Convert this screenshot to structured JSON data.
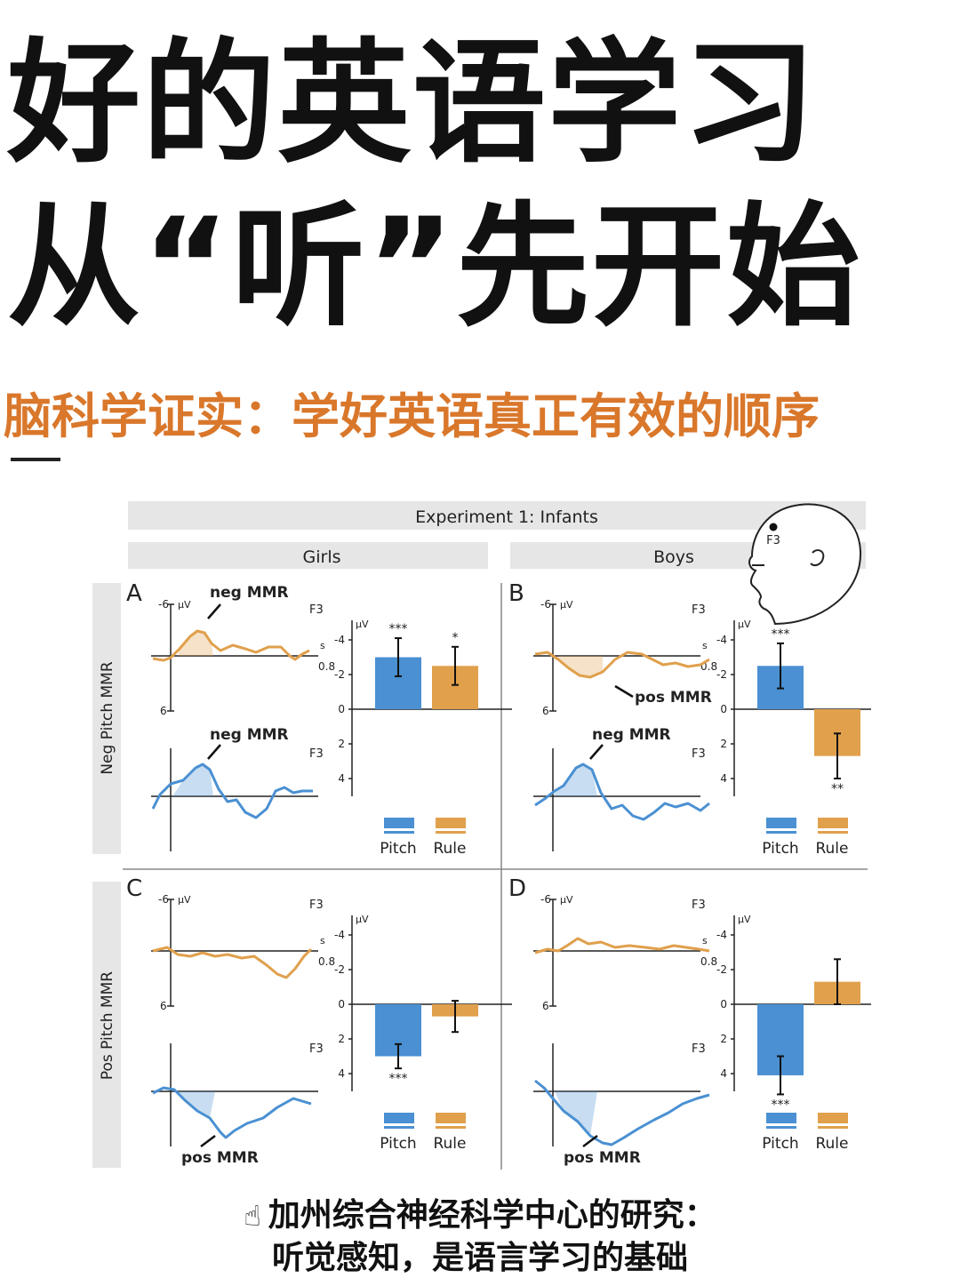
{
  "title_line1": "好的英语学习",
  "title_line2": "从“听”先开始",
  "subtitle": "脑科学证实：学好英语真正有效的顺序",
  "caption_icon": "pointing-hand-icon",
  "caption_line1": "加州综合神经科学中心的研究：",
  "caption_line2": "听觉感知，是语言学习的基础",
  "colors": {
    "pitch": "#4a90d2",
    "rule": "#e0a04c",
    "header_bg": "#e6e6e6",
    "accent": "#d9772b"
  },
  "chart_data": {
    "type": "bar",
    "figure_title": "Experiment 1: Infants",
    "columns": [
      "Girls",
      "Boys"
    ],
    "rows": [
      "Neg Pitch MMR",
      "Pos Pitch MMR"
    ],
    "electrode": "F3",
    "head_label": "F3",
    "unit": "μV",
    "time_unit": "s",
    "time_end_label": "0.8",
    "legend": [
      "Pitch",
      "Rule"
    ],
    "yaxis_ticks": [
      "-4",
      "-2",
      "0",
      "2",
      "4"
    ],
    "wave_ticks": [
      "-6",
      "6"
    ],
    "panels": [
      {
        "id": "A",
        "pitch": -3.0,
        "pitch_err": 1.1,
        "rule": -2.5,
        "rule_err": 1.1,
        "pitch_sig": "***",
        "rule_sig": "*",
        "top_label": "neg MMR",
        "bottom_label": "neg MMR"
      },
      {
        "id": "B",
        "pitch": -2.5,
        "pitch_err": 1.3,
        "rule": 2.7,
        "rule_err": 1.3,
        "pitch_sig": "***",
        "rule_sig": "**",
        "top_label": "pos MMR",
        "bottom_label": "neg MMR"
      },
      {
        "id": "C",
        "pitch": 3.0,
        "pitch_err": 0.7,
        "rule": 0.7,
        "rule_err": 0.9,
        "pitch_sig": "***",
        "rule_sig": "",
        "top_label": "",
        "bottom_label": "pos MMR"
      },
      {
        "id": "D",
        "pitch": 4.1,
        "pitch_err": 1.1,
        "rule": -1.3,
        "rule_err": 1.3,
        "pitch_sig": "***",
        "rule_sig": "",
        "top_label": "",
        "bottom_label": "pos MMR"
      }
    ]
  }
}
